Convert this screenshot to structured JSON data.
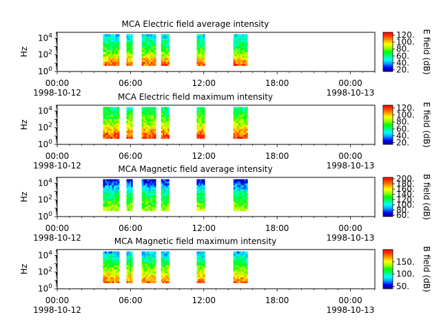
{
  "colors": {
    "colormap": [
      "#0000a0",
      "#0000ff",
      "#00a0ff",
      "#00ffff",
      "#00ff80",
      "#00ff00",
      "#a0ff00",
      "#ffff00",
      "#ffa000",
      "#ff4000",
      "#ff0000"
    ]
  },
  "chart_data": [
    {
      "type": "heatmap",
      "title": "MCA  Electric field average intensity",
      "ylabel": "Hz",
      "yscale": "log",
      "ylim": [
        1,
        50000
      ],
      "yticks": [
        {
          "value": 1,
          "base": "10",
          "exp": "0"
        },
        {
          "value": 100,
          "base": "10",
          "exp": "2"
        },
        {
          "value": 10000,
          "base": "10",
          "exp": "4"
        }
      ],
      "xlim": [
        "1998-10-12 00:00",
        "1998-10-13 02:00"
      ],
      "xticks": [
        {
          "time": "00:00",
          "date": "1998-10-12"
        },
        {
          "time": "06:00",
          "date": ""
        },
        {
          "time": "12:00",
          "date": ""
        },
        {
          "time": "18:00",
          "date": ""
        },
        {
          "time": "00:00",
          "date": "1998-10-13"
        }
      ],
      "data_intervals": [
        [
          "03:45",
          "05:05"
        ],
        [
          "05:40",
          "06:10"
        ],
        [
          "06:55",
          "08:05"
        ],
        [
          "08:30",
          "09:10"
        ],
        [
          "11:25",
          "12:05"
        ],
        [
          "14:25",
          "15:35"
        ]
      ],
      "freq_range": [
        5,
        30000
      ],
      "colorbar": {
        "label": "E field (dB)",
        "range": [
          15,
          128
        ],
        "ticks": [
          "20.",
          "40.",
          "60.",
          "80.",
          "100.",
          "120."
        ],
        "tick_values": [
          20,
          40,
          60,
          80,
          100,
          120
        ]
      },
      "intensity_profile": {
        "low_freq": 118,
        "mid_freq": 72,
        "high_freq": 45
      }
    },
    {
      "type": "heatmap",
      "title": "MCA  Electric field maximum intensity",
      "ylabel": "Hz",
      "yscale": "log",
      "ylim": [
        1,
        50000
      ],
      "yticks": [
        {
          "value": 1,
          "base": "10",
          "exp": "0"
        },
        {
          "value": 100,
          "base": "10",
          "exp": "2"
        },
        {
          "value": 10000,
          "base": "10",
          "exp": "4"
        }
      ],
      "xlim": [
        "1998-10-12 00:00",
        "1998-10-13 02:00"
      ],
      "xticks": [
        {
          "time": "00:00",
          "date": "1998-10-12"
        },
        {
          "time": "06:00",
          "date": ""
        },
        {
          "time": "12:00",
          "date": ""
        },
        {
          "time": "18:00",
          "date": ""
        },
        {
          "time": "00:00",
          "date": "1998-10-13"
        }
      ],
      "data_intervals": [
        [
          "03:45",
          "05:05"
        ],
        [
          "05:40",
          "06:10"
        ],
        [
          "06:55",
          "08:05"
        ],
        [
          "08:30",
          "09:10"
        ],
        [
          "11:25",
          "12:05"
        ],
        [
          "14:25",
          "15:35"
        ]
      ],
      "freq_range": [
        5,
        30000
      ],
      "colorbar": {
        "label": "E field (dB)",
        "range": [
          15,
          128
        ],
        "ticks": [
          "20.",
          "40.",
          "60.",
          "80.",
          "100.",
          "120."
        ],
        "tick_values": [
          20,
          40,
          60,
          80,
          100,
          120
        ]
      },
      "intensity_profile": {
        "low_freq": 122,
        "mid_freq": 82,
        "high_freq": 58
      }
    },
    {
      "type": "heatmap",
      "title": "MCA  Magnetic field average intensity",
      "ylabel": "Hz",
      "yscale": "log",
      "ylim": [
        1,
        50000
      ],
      "yticks": [
        {
          "value": 1,
          "base": "10",
          "exp": "0"
        },
        {
          "value": 100,
          "base": "10",
          "exp": "2"
        },
        {
          "value": 10000,
          "base": "10",
          "exp": "4"
        }
      ],
      "xlim": [
        "1998-10-12 00:00",
        "1998-10-13 02:00"
      ],
      "xticks": [
        {
          "time": "00:00",
          "date": "1998-10-12"
        },
        {
          "time": "06:00",
          "date": ""
        },
        {
          "time": "12:00",
          "date": ""
        },
        {
          "time": "18:00",
          "date": ""
        },
        {
          "time": "00:00",
          "date": "1998-10-13"
        }
      ],
      "data_intervals": [
        [
          "03:45",
          "05:05"
        ],
        [
          "05:40",
          "06:10"
        ],
        [
          "06:55",
          "08:05"
        ],
        [
          "08:30",
          "09:10"
        ],
        [
          "11:25",
          "12:05"
        ],
        [
          "14:25",
          "15:35"
        ]
      ],
      "freq_range": [
        5,
        30000
      ],
      "colorbar": {
        "label": "B field (dB)",
        "range": [
          55,
          205
        ],
        "ticks": [
          "60.",
          "80.",
          "100.",
          "120.",
          "140.",
          "160.",
          "180.",
          "200."
        ],
        "tick_values": [
          60,
          80,
          100,
          120,
          140,
          160,
          180,
          200
        ]
      },
      "intensity_profile": {
        "low_freq": 150,
        "mid_freq": 118,
        "high_freq": 62
      }
    },
    {
      "type": "heatmap",
      "title": "MCA  Magnetic field maximum intensity",
      "ylabel": "Hz",
      "yscale": "log",
      "ylim": [
        1,
        50000
      ],
      "yticks": [
        {
          "value": 1,
          "base": "10",
          "exp": "0"
        },
        {
          "value": 100,
          "base": "10",
          "exp": "2"
        },
        {
          "value": 10000,
          "base": "10",
          "exp": "4"
        }
      ],
      "xlim": [
        "1998-10-12 00:00",
        "1998-10-13 02:00"
      ],
      "xticks": [
        {
          "time": "00:00",
          "date": "1998-10-12"
        },
        {
          "time": "06:00",
          "date": ""
        },
        {
          "time": "12:00",
          "date": ""
        },
        {
          "time": "18:00",
          "date": ""
        },
        {
          "time": "00:00",
          "date": "1998-10-13"
        }
      ],
      "data_intervals": [
        [
          "03:45",
          "05:05"
        ],
        [
          "05:40",
          "06:10"
        ],
        [
          "06:55",
          "08:05"
        ],
        [
          "08:30",
          "09:10"
        ],
        [
          "11:25",
          "12:05"
        ],
        [
          "14:25",
          "15:35"
        ]
      ],
      "freq_range": [
        5,
        30000
      ],
      "colorbar": {
        "label": "B field (dB)",
        "range": [
          40,
          200
        ],
        "ticks": [
          "50.",
          "100.",
          "150."
        ],
        "tick_values": [
          50,
          100,
          150
        ]
      },
      "intensity_profile": {
        "low_freq": 178,
        "mid_freq": 128,
        "high_freq": 75
      }
    }
  ]
}
